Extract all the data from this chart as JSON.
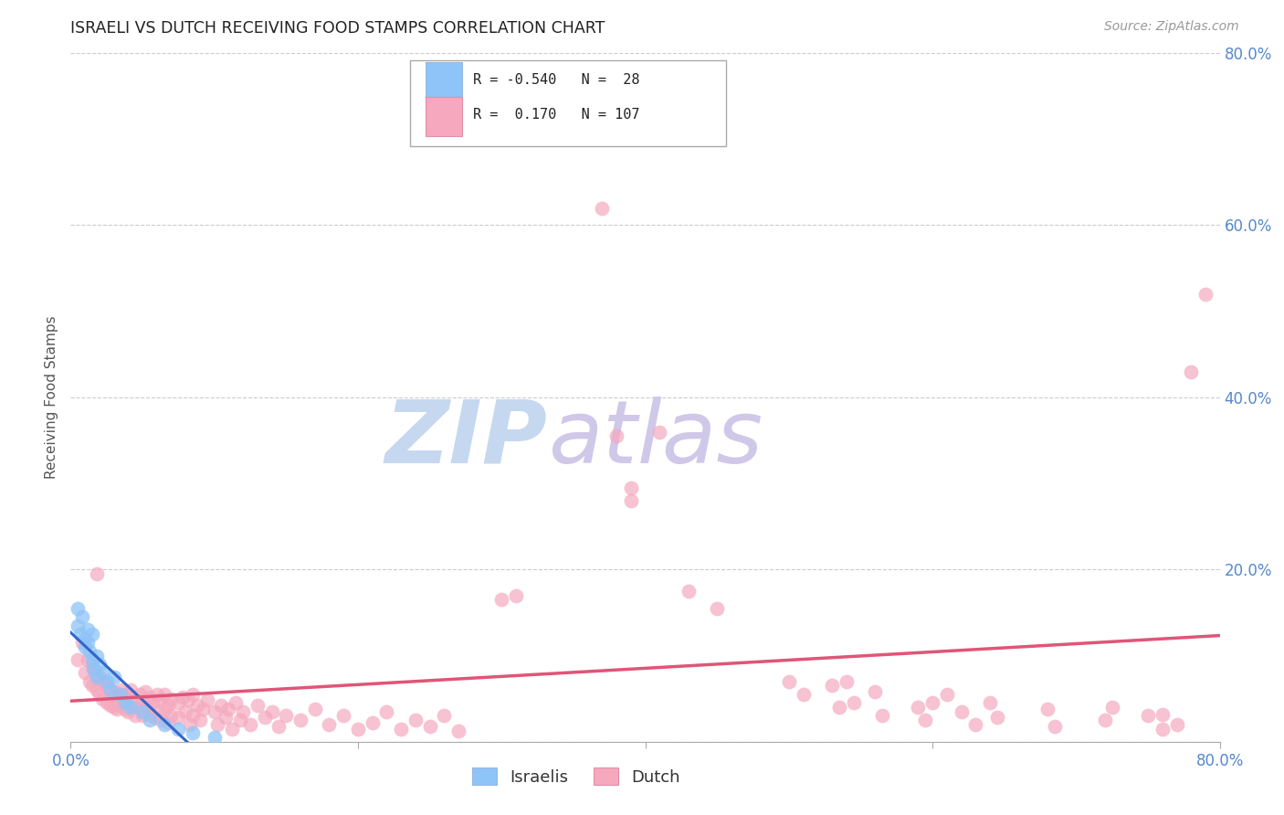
{
  "title": "ISRAELI VS DUTCH RECEIVING FOOD STAMPS CORRELATION CHART",
  "source": "Source: ZipAtlas.com",
  "ylabel": "Receiving Food Stamps",
  "xlim": [
    0.0,
    0.8
  ],
  "ylim": [
    0.0,
    0.8
  ],
  "xticks": [
    0.0,
    0.2,
    0.4,
    0.6,
    0.8
  ],
  "yticks": [
    0.0,
    0.2,
    0.4,
    0.6,
    0.8
  ],
  "xtick_labels": [
    "0.0%",
    "",
    "",
    "",
    "80.0%"
  ],
  "ytick_labels_right": [
    "",
    "20.0%",
    "40.0%",
    "60.0%",
    "80.0%"
  ],
  "israeli_color": "#8ec4f8",
  "dutch_color": "#f5a8be",
  "israeli_line_color": "#3366cc",
  "dutch_line_color": "#e05578",
  "background_color": "#ffffff",
  "grid_color": "#cccccc",
  "axis_label_color": "#5588cc",
  "watermark_zip_color": "#c5d8f0",
  "watermark_atlas_color": "#d0c8e8",
  "israeli_points": [
    [
      0.005,
      0.155
    ],
    [
      0.005,
      0.135
    ],
    [
      0.007,
      0.125
    ],
    [
      0.008,
      0.145
    ],
    [
      0.01,
      0.12
    ],
    [
      0.01,
      0.11
    ],
    [
      0.012,
      0.13
    ],
    [
      0.012,
      0.115
    ],
    [
      0.013,
      0.105
    ],
    [
      0.015,
      0.125
    ],
    [
      0.015,
      0.095
    ],
    [
      0.016,
      0.085
    ],
    [
      0.018,
      0.1
    ],
    [
      0.018,
      0.075
    ],
    [
      0.02,
      0.09
    ],
    [
      0.022,
      0.08
    ],
    [
      0.025,
      0.07
    ],
    [
      0.028,
      0.06
    ],
    [
      0.03,
      0.075
    ],
    [
      0.035,
      0.055
    ],
    [
      0.038,
      0.045
    ],
    [
      0.042,
      0.04
    ],
    [
      0.05,
      0.035
    ],
    [
      0.055,
      0.025
    ],
    [
      0.065,
      0.02
    ],
    [
      0.075,
      0.015
    ],
    [
      0.085,
      0.01
    ],
    [
      0.1,
      0.005
    ]
  ],
  "dutch_points": [
    [
      0.005,
      0.095
    ],
    [
      0.008,
      0.115
    ],
    [
      0.01,
      0.08
    ],
    [
      0.012,
      0.095
    ],
    [
      0.013,
      0.07
    ],
    [
      0.015,
      0.09
    ],
    [
      0.015,
      0.065
    ],
    [
      0.017,
      0.08
    ],
    [
      0.018,
      0.06
    ],
    [
      0.02,
      0.075
    ],
    [
      0.02,
      0.055
    ],
    [
      0.022,
      0.07
    ],
    [
      0.022,
      0.05
    ],
    [
      0.025,
      0.065
    ],
    [
      0.025,
      0.045
    ],
    [
      0.027,
      0.06
    ],
    [
      0.028,
      0.042
    ],
    [
      0.03,
      0.058
    ],
    [
      0.03,
      0.04
    ],
    [
      0.032,
      0.055
    ],
    [
      0.032,
      0.038
    ],
    [
      0.035,
      0.06
    ],
    [
      0.035,
      0.042
    ],
    [
      0.037,
      0.055
    ],
    [
      0.038,
      0.038
    ],
    [
      0.04,
      0.052
    ],
    [
      0.04,
      0.035
    ],
    [
      0.042,
      0.06
    ],
    [
      0.043,
      0.05
    ],
    [
      0.045,
      0.042
    ],
    [
      0.045,
      0.03
    ],
    [
      0.048,
      0.055
    ],
    [
      0.048,
      0.038
    ],
    [
      0.05,
      0.048
    ],
    [
      0.05,
      0.03
    ],
    [
      0.052,
      0.058
    ],
    [
      0.053,
      0.04
    ],
    [
      0.055,
      0.052
    ],
    [
      0.055,
      0.032
    ],
    [
      0.057,
      0.045
    ],
    [
      0.058,
      0.028
    ],
    [
      0.06,
      0.055
    ],
    [
      0.06,
      0.035
    ],
    [
      0.062,
      0.048
    ],
    [
      0.063,
      0.025
    ],
    [
      0.065,
      0.055
    ],
    [
      0.066,
      0.038
    ],
    [
      0.068,
      0.042
    ],
    [
      0.068,
      0.022
    ],
    [
      0.07,
      0.05
    ],
    [
      0.07,
      0.03
    ],
    [
      0.075,
      0.045
    ],
    [
      0.075,
      0.028
    ],
    [
      0.078,
      0.052
    ],
    [
      0.08,
      0.035
    ],
    [
      0.082,
      0.048
    ],
    [
      0.083,
      0.02
    ],
    [
      0.085,
      0.055
    ],
    [
      0.085,
      0.03
    ],
    [
      0.088,
      0.042
    ],
    [
      0.09,
      0.025
    ],
    [
      0.092,
      0.038
    ],
    [
      0.095,
      0.048
    ],
    [
      0.1,
      0.035
    ],
    [
      0.102,
      0.02
    ],
    [
      0.105,
      0.042
    ],
    [
      0.108,
      0.028
    ],
    [
      0.11,
      0.038
    ],
    [
      0.112,
      0.015
    ],
    [
      0.115,
      0.045
    ],
    [
      0.118,
      0.025
    ],
    [
      0.12,
      0.035
    ],
    [
      0.125,
      0.02
    ],
    [
      0.13,
      0.042
    ],
    [
      0.135,
      0.028
    ],
    [
      0.14,
      0.035
    ],
    [
      0.145,
      0.018
    ],
    [
      0.15,
      0.03
    ],
    [
      0.16,
      0.025
    ],
    [
      0.17,
      0.038
    ],
    [
      0.18,
      0.02
    ],
    [
      0.19,
      0.03
    ],
    [
      0.2,
      0.015
    ],
    [
      0.21,
      0.022
    ],
    [
      0.22,
      0.035
    ],
    [
      0.23,
      0.015
    ],
    [
      0.24,
      0.025
    ],
    [
      0.25,
      0.018
    ],
    [
      0.26,
      0.03
    ],
    [
      0.27,
      0.012
    ],
    [
      0.3,
      0.165
    ],
    [
      0.31,
      0.17
    ],
    [
      0.37,
      0.62
    ],
    [
      0.38,
      0.355
    ],
    [
      0.39,
      0.295
    ],
    [
      0.39,
      0.28
    ],
    [
      0.41,
      0.36
    ],
    [
      0.43,
      0.175
    ],
    [
      0.45,
      0.155
    ],
    [
      0.5,
      0.07
    ],
    [
      0.51,
      0.055
    ],
    [
      0.53,
      0.065
    ],
    [
      0.535,
      0.04
    ],
    [
      0.54,
      0.07
    ],
    [
      0.545,
      0.045
    ],
    [
      0.56,
      0.058
    ],
    [
      0.565,
      0.03
    ],
    [
      0.59,
      0.04
    ],
    [
      0.595,
      0.025
    ],
    [
      0.6,
      0.045
    ],
    [
      0.61,
      0.055
    ],
    [
      0.62,
      0.035
    ],
    [
      0.63,
      0.02
    ],
    [
      0.64,
      0.045
    ],
    [
      0.645,
      0.028
    ],
    [
      0.68,
      0.038
    ],
    [
      0.685,
      0.018
    ],
    [
      0.72,
      0.025
    ],
    [
      0.725,
      0.04
    ],
    [
      0.75,
      0.03
    ],
    [
      0.76,
      0.015
    ],
    [
      0.76,
      0.032
    ],
    [
      0.77,
      0.02
    ],
    [
      0.78,
      0.43
    ],
    [
      0.79,
      0.52
    ],
    [
      0.018,
      0.195
    ]
  ]
}
